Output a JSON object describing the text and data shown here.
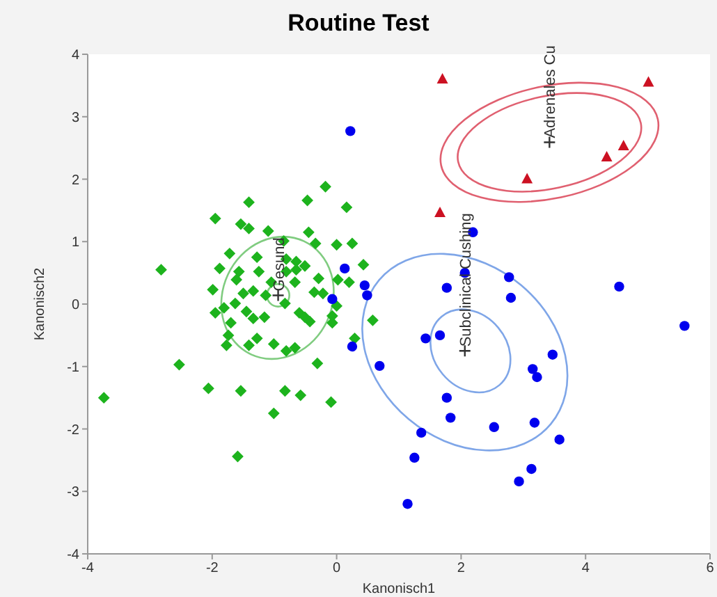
{
  "chart_data": {
    "type": "scatter",
    "title": "Routine Test",
    "xlabel": "Kanonisch1",
    "ylabel": "Kanonisch2",
    "xlim": [
      -4,
      6
    ],
    "ylim": [
      -4,
      4
    ],
    "xticks": [
      -4,
      -2,
      0,
      2,
      4,
      6
    ],
    "yticks": [
      -4,
      -3,
      -2,
      -1,
      0,
      1,
      2,
      3,
      4
    ],
    "annotations": [
      {
        "text": "Gesund",
        "x": -0.94,
        "y": 0.14
      },
      {
        "text": "Subclinical Cushing",
        "x": 2.06,
        "y": -0.75
      },
      {
        "text": "Adrenales Cu",
        "x": 3.42,
        "y": 2.59
      }
    ],
    "series": [
      {
        "color": "#1db31d",
        "marker": "diamond",
        "x": [
          -0.18,
          -0.47,
          -1.41,
          0.16,
          -1.95,
          -1.54,
          -1.41,
          -1.1,
          -0.45,
          -0.85,
          -0.34,
          0.0,
          0.25,
          -1.72,
          -1.28,
          -0.81,
          -0.65,
          -0.51,
          -2.82,
          -1.88,
          -1.57,
          -1.25,
          -0.81,
          -0.65,
          0.43,
          -1.61,
          -1.05,
          -0.67,
          -0.29,
          0.02,
          0.2,
          -1.99,
          -1.5,
          -1.34,
          -1.14,
          -0.36,
          -0.22,
          -1.81,
          -1.63,
          -1.95,
          -1.45,
          -1.34,
          -1.16,
          -0.83,
          -0.6,
          -0.51,
          -0.43,
          0.0,
          -0.07,
          -0.07,
          0.58,
          -1.7,
          -1.74,
          -1.28,
          -1.77,
          -1.41,
          -1.01,
          -0.81,
          -0.67,
          0.29,
          -0.31,
          -2.53,
          -2.06,
          -1.54,
          -0.83,
          -0.58,
          -0.09,
          -3.74,
          -1.01,
          -1.59
        ],
        "values": [
          1.88,
          1.66,
          1.63,
          1.55,
          1.37,
          1.28,
          1.21,
          1.17,
          1.15,
          1.01,
          0.97,
          0.95,
          0.97,
          0.81,
          0.75,
          0.72,
          0.68,
          0.61,
          0.55,
          0.57,
          0.52,
          0.52,
          0.52,
          0.55,
          0.63,
          0.39,
          0.35,
          0.35,
          0.41,
          0.39,
          0.35,
          0.23,
          0.17,
          0.21,
          0.14,
          0.19,
          0.17,
          -0.06,
          0.01,
          -0.14,
          -0.12,
          -0.23,
          -0.21,
          0.01,
          -0.14,
          -0.21,
          -0.28,
          -0.03,
          -0.19,
          -0.3,
          -0.26,
          -0.3,
          -0.5,
          -0.55,
          -0.66,
          -0.66,
          -0.64,
          -0.75,
          -0.7,
          -0.55,
          -0.95,
          -0.97,
          -1.35,
          -1.39,
          -1.39,
          -1.46,
          -1.57,
          -1.5,
          -1.75,
          -2.44
        ]
      },
      {
        "color": "#0000ee",
        "marker": "circle",
        "x": [
          0.22,
          0.13,
          -0.07,
          0.45,
          0.49,
          0.25,
          0.69,
          2.19,
          2.06,
          2.77,
          2.8,
          4.54,
          1.77,
          5.59,
          1.43,
          1.66,
          3.47,
          3.15,
          3.22,
          1.77,
          1.83,
          2.53,
          3.18,
          1.36,
          3.58,
          1.25,
          3.13,
          2.93,
          1.14
        ],
        "values": [
          2.77,
          0.57,
          0.08,
          0.3,
          0.14,
          -0.68,
          -0.99,
          1.15,
          0.5,
          0.43,
          0.1,
          0.28,
          0.26,
          -0.35,
          -0.55,
          -0.5,
          -0.81,
          -1.04,
          -1.17,
          -1.5,
          -1.82,
          -1.97,
          -1.9,
          -2.06,
          -2.17,
          -2.46,
          -2.64,
          -2.84,
          -3.2
        ]
      },
      {
        "color": "#cc1122",
        "marker": "triangle",
        "x": [
          1.7,
          5.01,
          4.61,
          4.34,
          3.06,
          1.66
        ],
        "values": [
          3.6,
          3.55,
          2.53,
          2.35,
          2.0,
          1.46
        ]
      },
      {
        "color": "#333333",
        "marker": "cross",
        "x": [
          -0.94,
          2.06,
          3.42
        ],
        "values": [
          0.14,
          -0.75,
          2.59
        ]
      }
    ]
  }
}
